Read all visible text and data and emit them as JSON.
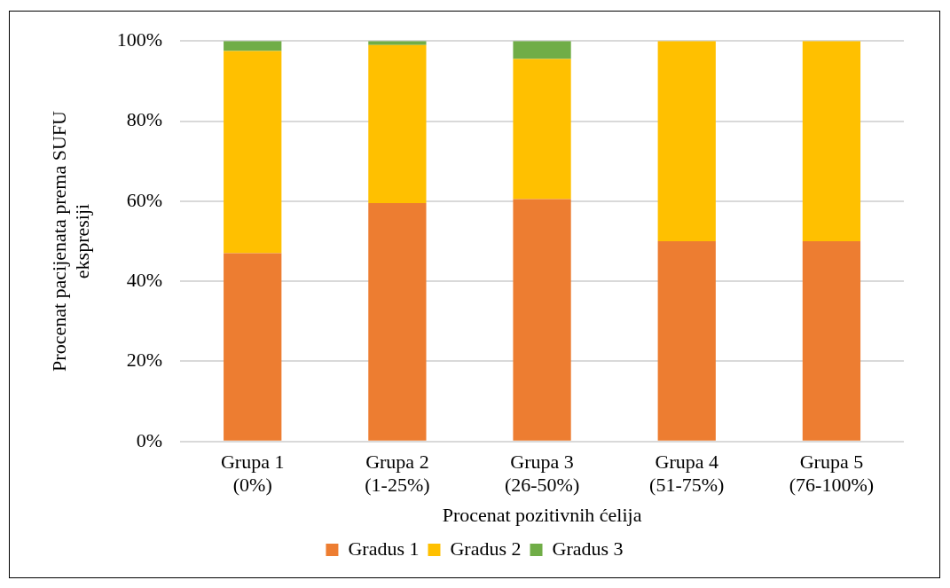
{
  "chart_data": {
    "type": "bar",
    "stacked": true,
    "xlabel": "Procenat pozitivnih ćelija",
    "ylabel": "Procenat pacijenata prema SUFU ekspresiji",
    "categories": [
      "Grupa 1\n(0%)",
      "Grupa 2\n(1-25%)",
      "Grupa 3\n(26-50%)",
      "Grupa 4\n(51-75%)",
      "Grupa 5\n(76-100%)"
    ],
    "series": [
      {
        "name": "Gradus 1",
        "color": "#ed7d31",
        "values": [
          47,
          59.5,
          60.5,
          50,
          50
        ]
      },
      {
        "name": "Gradus 2",
        "color": "#ffc000",
        "values": [
          50.5,
          39.5,
          35,
          50,
          50
        ]
      },
      {
        "name": "Gradus 3",
        "color": "#70ad47",
        "values": [
          2.5,
          1,
          4.5,
          0,
          0
        ]
      }
    ],
    "ylim": [
      0,
      100
    ],
    "yticks": [
      {
        "value": 0,
        "label": "0%"
      },
      {
        "value": 20,
        "label": "20%"
      },
      {
        "value": 40,
        "label": "40%"
      },
      {
        "value": 60,
        "label": "60%"
      },
      {
        "value": 80,
        "label": "80%"
      },
      {
        "value": 100,
        "label": "100%"
      }
    ],
    "grid": "y",
    "legend": "bottom"
  }
}
